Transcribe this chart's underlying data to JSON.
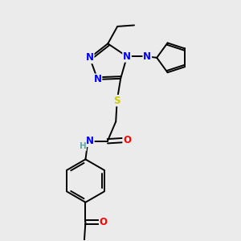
{
  "background_color": "#ebebeb",
  "atom_colors": {
    "N": "#0000ff",
    "O": "#ff0000",
    "S": "#cccc00",
    "C": "#000000",
    "H": "#5fa8a8"
  },
  "bond_color": "#000000",
  "figsize": [
    3.0,
    3.0
  ],
  "dpi": 100,
  "lw": 1.4,
  "fs": 8.5
}
